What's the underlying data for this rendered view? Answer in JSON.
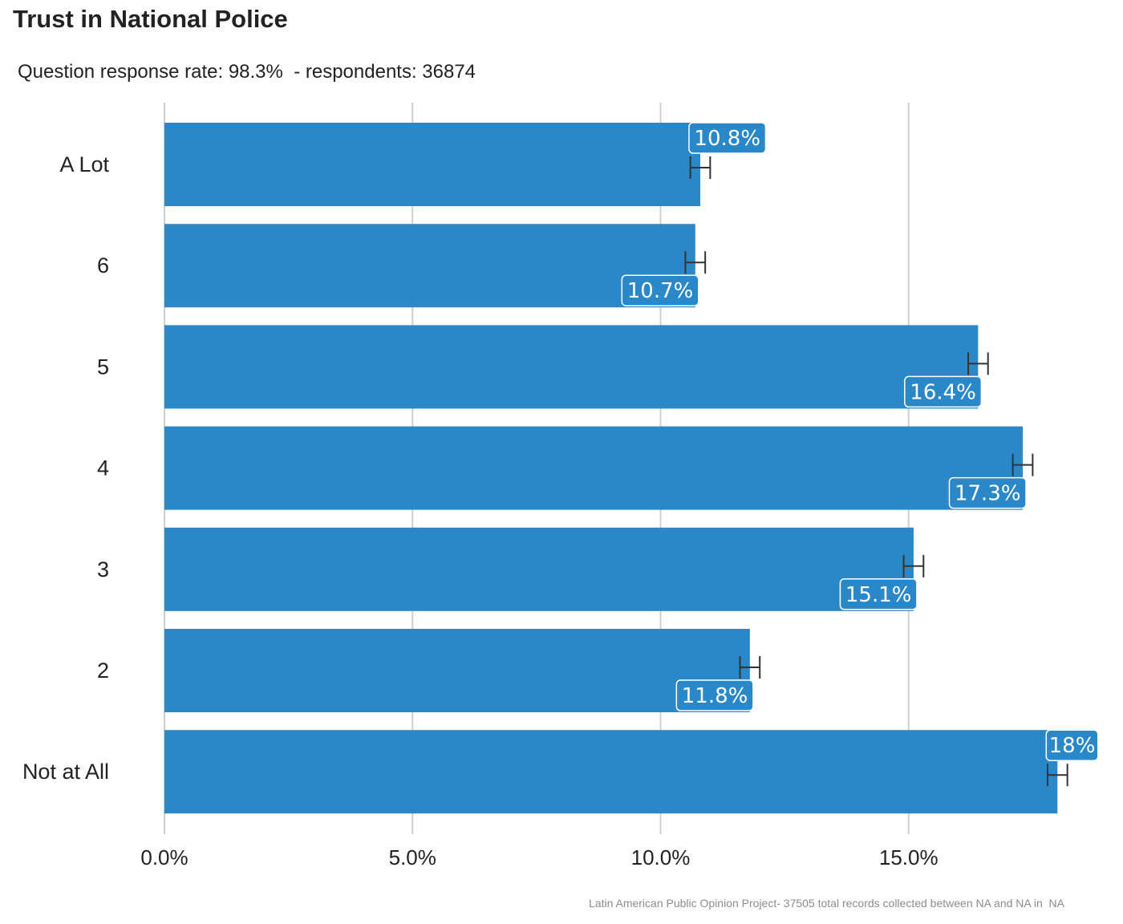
{
  "chart_data": {
    "type": "bar",
    "orientation": "horizontal",
    "title": "Trust in National Police",
    "subtitle": "Question response rate: 98.3%  - respondents: 36874",
    "caption": "Latin American Public Opinion Project- 37505 total records collected between NA and NA in  NA",
    "categories": [
      "A Lot",
      "6",
      "5",
      "4",
      "3",
      "2",
      "Not at All"
    ],
    "values": [
      10.8,
      10.7,
      16.4,
      17.3,
      15.1,
      11.8,
      18.0
    ],
    "value_labels": [
      "10.8%",
      "10.7%",
      "16.4%",
      "17.3%",
      "15.1%",
      "11.8%",
      "18%"
    ],
    "error_bars": [
      {
        "low": 10.6,
        "high": 11.0
      },
      {
        "low": 10.5,
        "high": 10.9
      },
      {
        "low": 16.2,
        "high": 16.6
      },
      {
        "low": 17.1,
        "high": 17.5
      },
      {
        "low": 14.9,
        "high": 15.3
      },
      {
        "low": 11.6,
        "high": 12.0
      },
      {
        "low": 17.8,
        "high": 18.2
      }
    ],
    "label_above": [
      true,
      false,
      false,
      false,
      false,
      false,
      true
    ],
    "x_ticks": [
      0,
      5,
      10,
      15
    ],
    "x_tick_labels": [
      "0.0%",
      "5.0%",
      "10.0%",
      "15.0%"
    ],
    "xlim": [
      0,
      18.8
    ],
    "grid": "vertical",
    "legend": "none"
  },
  "colors": {
    "bar": "#2b88c8",
    "grid": "#cfcfcf",
    "error_bar": "#333333",
    "label_text": "#ffffff",
    "label_border": "#ffffff"
  }
}
